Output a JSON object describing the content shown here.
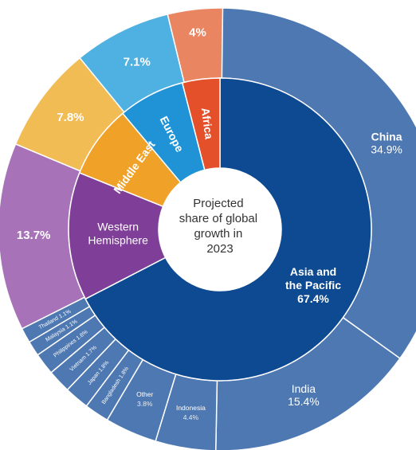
{
  "chart_data": {
    "type": "sunburst",
    "center_label": [
      "Projected",
      "share of global",
      "growth in",
      "2023"
    ],
    "inner_ring": [
      {
        "name": [
          "Asia and",
          "the Pacific"
        ],
        "value": 67.4,
        "value_label": "67.4%",
        "color": "#0d4a92"
      },
      {
        "name": [
          "Western",
          "Hemisphere"
        ],
        "value": 13.7,
        "color": "#7f3f98"
      },
      {
        "name": [
          "Middle East"
        ],
        "value": 7.8,
        "color": "#f0a128"
      },
      {
        "name": [
          "Europe"
        ],
        "value": 7.1,
        "color": "#1f93d6"
      },
      {
        "name": [
          "Africa"
        ],
        "value": 4.0,
        "color": "#e4502a"
      }
    ],
    "outer_ring": [
      {
        "name": "China",
        "value": 34.9,
        "value_label": "34.9%",
        "color": "#4e78b1"
      },
      {
        "name": "India",
        "value": 15.4,
        "value_label": "15.4%",
        "color": "#4e78b1"
      },
      {
        "name": "Indonesia",
        "value": 4.4,
        "value_label": "4.4%",
        "color": "#4e78b1"
      },
      {
        "name": "Other",
        "value": 3.8,
        "value_label": "3.8%",
        "color": "#4e78b1"
      },
      {
        "name": "Bangladesh",
        "value": 1.8,
        "value_label": "1.8%",
        "color": "#4e78b1"
      },
      {
        "name": "Japan",
        "value": 1.8,
        "value_label": "1.8%",
        "color": "#4e78b1"
      },
      {
        "name": "Vietnam",
        "value": 1.7,
        "value_label": "1.7%",
        "color": "#4e78b1"
      },
      {
        "name": "Philippines",
        "value": 1.6,
        "value_label": "1.6%",
        "color": "#4e78b1"
      },
      {
        "name": "Malaysia",
        "value": 1.1,
        "value_label": "1.1%",
        "color": "#4e78b1"
      },
      {
        "name": "Thailand",
        "value": 1.1,
        "value_label": "1.1%",
        "color": "#4e78b1"
      },
      {
        "name": "",
        "value": 13.7,
        "value_label": "13.7%",
        "color": "#a872b8"
      },
      {
        "name": "",
        "value": 7.8,
        "value_label": "7.8%",
        "color": "#f2bc55"
      },
      {
        "name": "",
        "value": 7.1,
        "value_label": "7.1%",
        "color": "#4fb0e2"
      },
      {
        "name": "",
        "value": 4.0,
        "value_label": "4%",
        "color": "#e98561"
      }
    ]
  }
}
